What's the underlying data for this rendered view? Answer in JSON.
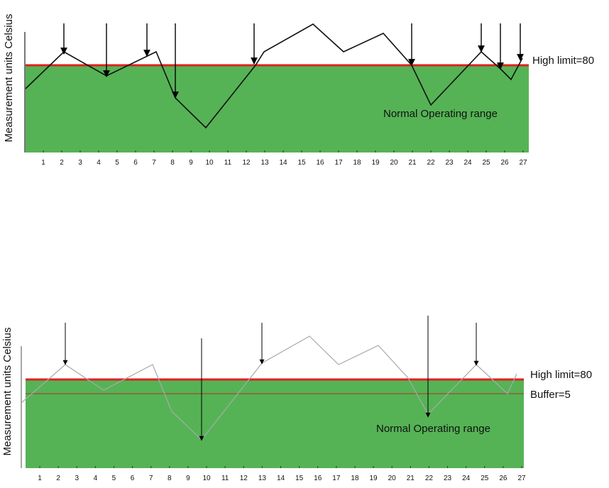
{
  "panels": [
    {
      "y_label": "Measurement units  Celsius",
      "high_limit_label": "High limit=80",
      "range_label": "Normal Operating range",
      "x_ticks": [
        "1",
        "2",
        "3",
        "4",
        "5",
        "6",
        "7",
        "8",
        "9",
        "10",
        "11",
        "12",
        "13",
        "14",
        "15",
        "16",
        "17",
        "18",
        "19",
        "20",
        "21",
        "22",
        "23",
        "24",
        "25",
        "26",
        "27"
      ]
    },
    {
      "y_label": "Measurement units  Celsius",
      "high_limit_label": "High limit=80",
      "buffer_label": "Buffer=5",
      "range_label": "Normal Operating range",
      "x_ticks": [
        "1",
        "2",
        "3",
        "4",
        "5",
        "6",
        "7",
        "8",
        "9",
        "10",
        "11",
        "12",
        "13",
        "14",
        "15",
        "16",
        "17",
        "18",
        "19",
        "20",
        "21",
        "22",
        "23",
        "24",
        "25",
        "26",
        "27"
      ]
    }
  ]
}
